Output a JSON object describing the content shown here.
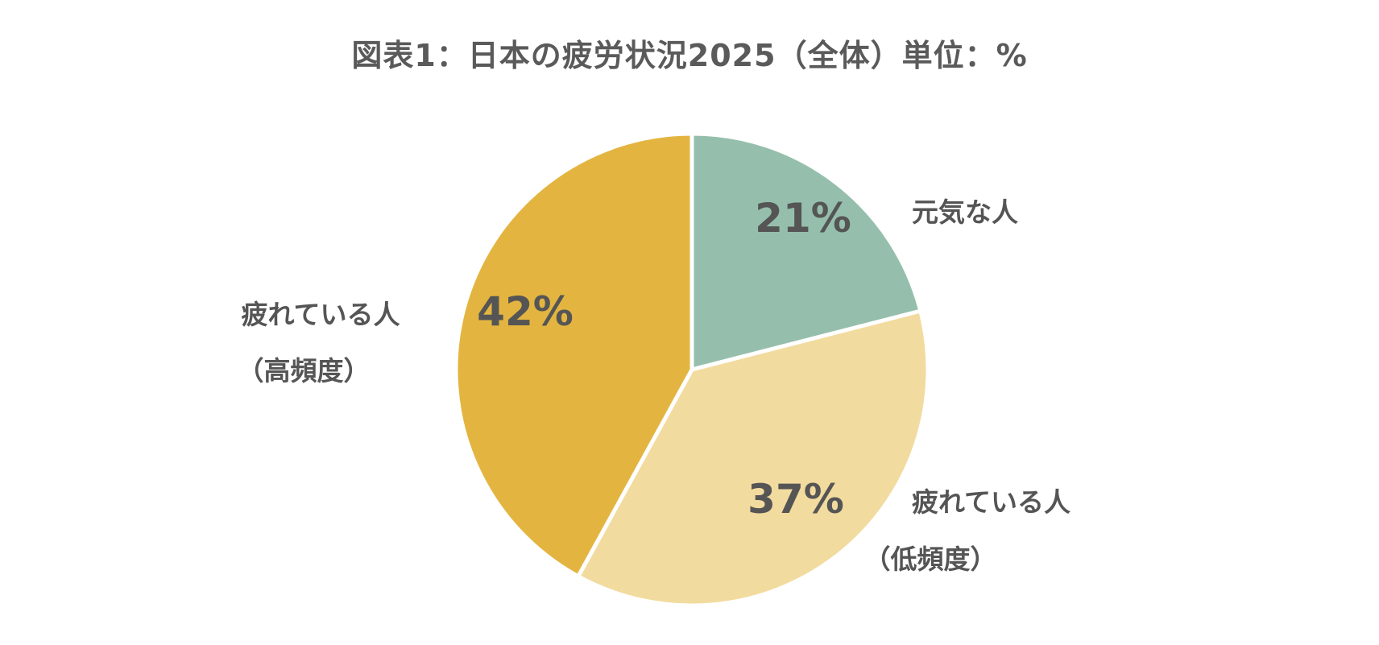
{
  "title": "図表1：日本の疲労状況2025（全体）単位：%",
  "chart_data": {
    "type": "pie",
    "title": "図表1：日本の疲労状況2025（全体）単位：%",
    "start_angle_deg": 0,
    "direction": "clockwise",
    "slices": [
      {
        "name": "元気な人",
        "label_lines": [
          "元気な人"
        ],
        "value": 21,
        "display": "21%",
        "color": "#95bfac"
      },
      {
        "name": "疲れている人（低頻度）",
        "label_lines": [
          "疲れている人",
          "（低頻度）"
        ],
        "value": 37,
        "display": "37%",
        "color": "#f2db9e"
      },
      {
        "name": "疲れている人（高頻度）",
        "label_lines": [
          "疲れている人",
          "（高頻度）"
        ],
        "value": 42,
        "display": "42%",
        "color": "#e3b540"
      }
    ]
  }
}
